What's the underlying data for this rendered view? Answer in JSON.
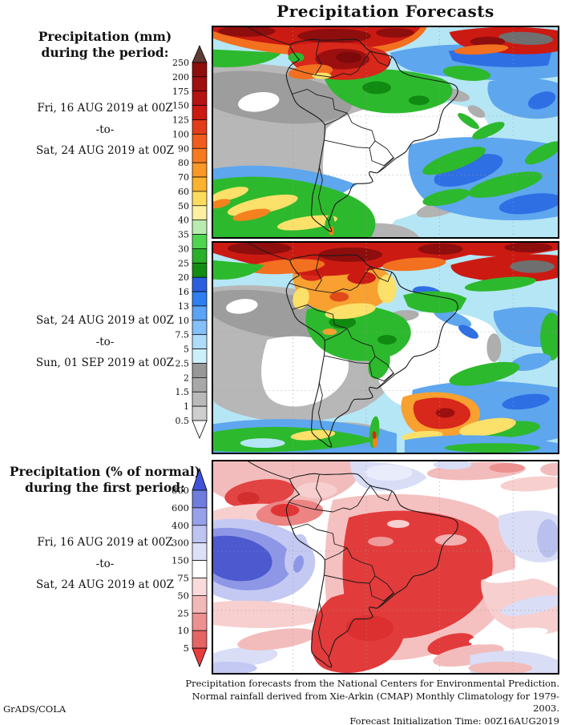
{
  "title": "Precipitation Forecasts",
  "panels": [
    {
      "heading": [
        "Precipitation (mm)",
        "during the period:"
      ],
      "dates": [
        "Fri, 16 AUG 2019 at 00Z",
        "-to-",
        "Sat, 24 AUG 2019 at 00Z"
      ]
    },
    {
      "dates": [
        "Sat, 24 AUG 2019 at 00Z",
        "-to-",
        "Sun, 01 SEP 2019 at 00Z"
      ]
    },
    {
      "heading": [
        "Precipitation (% of normal)",
        "during the first period:"
      ],
      "dates": [
        "Fri, 16 AUG 2019 at 00Z",
        "-to-",
        "Sat, 24 AUG 2019 at 00Z"
      ]
    }
  ],
  "colorbars": {
    "mm": {
      "tick_labels": [
        "250",
        "200",
        "175",
        "150",
        "125",
        "100",
        "90",
        "80",
        "70",
        "60",
        "50",
        "40",
        "35",
        "30",
        "25",
        "20",
        "16",
        "13",
        "10",
        "7.5",
        "5",
        "2.5",
        "2",
        "1.5",
        "1",
        "0.5"
      ],
      "segment_colors": [
        "#8e0d0d",
        "#9f1010",
        "#b51414",
        "#cb1a12",
        "#e23d1a",
        "#ef5c1d",
        "#f67a20",
        "#f99727",
        "#fbb22d",
        "#fcdc5e",
        "#fdf0a2",
        "#b9ecae",
        "#4fd44f",
        "#2aaf2a",
        "#128c12",
        "#2b5fe0",
        "#2f7ff0",
        "#5ba3f5",
        "#86c0f8",
        "#aedcfa",
        "#ccf0fb",
        "#979797",
        "#a8a8a8",
        "#bababa",
        "#cecece"
      ],
      "arrow_top_color": "#5e3c33",
      "arrow_bottom_color": "#ffffff"
    },
    "percent": {
      "tick_labels": [
        "800",
        "600",
        "400",
        "300",
        "150",
        "75",
        "50",
        "25",
        "10",
        "5"
      ],
      "segment_colors": [
        "#6f7ddf",
        "#98a2ea",
        "#bdc4f2",
        "#dde1f8",
        "#ffffff",
        "#f9dbdb",
        "#f3b8b8",
        "#ec9090",
        "#e56464"
      ],
      "arrow_top_color": "#4053d8",
      "arrow_bottom_color": "#e93c3c"
    }
  },
  "footer": {
    "line1": "Precipitation forecasts from the National Centers for Environmental Prediction.",
    "line2": "Normal rainfall derived from Xie-Arkin (CMAP) Monthly Climatology for 1979-2003.",
    "line3": "Forecast Initialization Time: 00Z16AUG2019",
    "credit": "GrADS/COLA"
  },
  "chart_data": {
    "type": "heatmap",
    "panels": [
      {
        "title": "Precipitation (mm) during the period Fri, 16 AUG 2019 at 00Z to Sat, 24 AUG 2019 at 00Z",
        "region": "South America and adjacent oceans",
        "units": "mm",
        "legend_levels": [
          0.5,
          1,
          1.5,
          2,
          2.5,
          5,
          7.5,
          10,
          13,
          16,
          20,
          25,
          30,
          35,
          40,
          50,
          60,
          70,
          80,
          90,
          100,
          125,
          150,
          175,
          200,
          250
        ],
        "legend_position": "left"
      },
      {
        "title": "Precipitation (mm) during the period Sat, 24 AUG 2019 at 00Z to Sun, 01 SEP 2019 at 00Z",
        "region": "South America and adjacent oceans",
        "units": "mm",
        "legend_levels": [
          0.5,
          1,
          1.5,
          2,
          2.5,
          5,
          7.5,
          10,
          13,
          16,
          20,
          25,
          30,
          35,
          40,
          50,
          60,
          70,
          80,
          90,
          100,
          125,
          150,
          175,
          200,
          250
        ],
        "legend_position": "left"
      },
      {
        "title": "Precipitation (% of normal) during the first period Fri, 16 AUG 2019 at 00Z to Sat, 24 AUG 2019 at 00Z",
        "region": "South America and adjacent oceans",
        "units": "% of normal",
        "legend_levels": [
          5,
          10,
          25,
          50,
          75,
          150,
          300,
          400,
          600,
          800
        ],
        "legend_position": "left"
      }
    ]
  }
}
